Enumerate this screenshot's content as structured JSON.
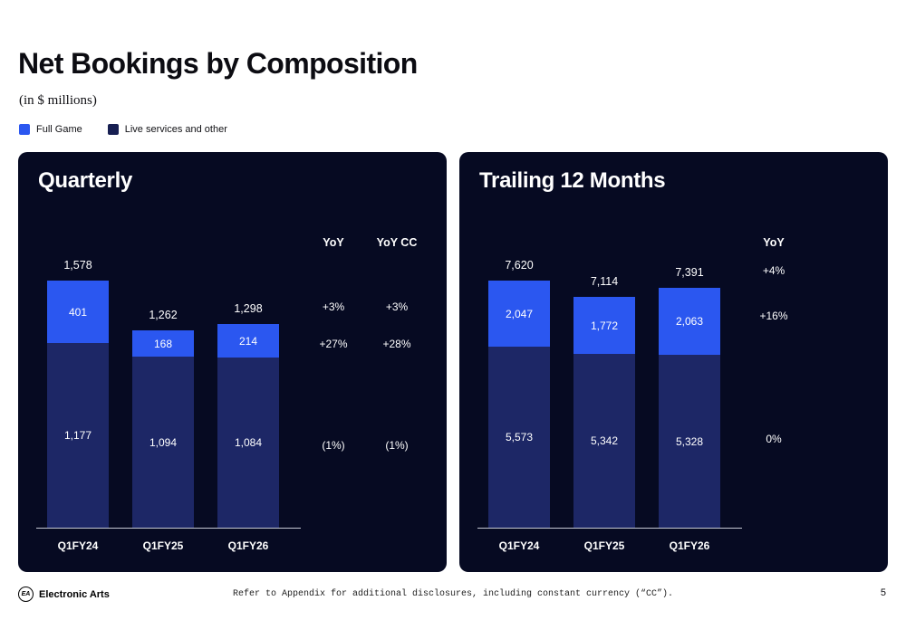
{
  "page": {
    "title": "Net Bookings by Composition",
    "subtitle": "(in $ millions)",
    "brand": "Electronic Arts",
    "logo_text": "EA",
    "footnote": "Refer to Appendix for additional disclosures, including constant currency (“CC”).",
    "page_number": "5"
  },
  "legend": [
    {
      "label": "Full Game",
      "color": "#2b57f0"
    },
    {
      "label": "Live services and other",
      "color": "#171f52"
    }
  ],
  "colors": {
    "panel_bg": "#060a22",
    "full_game": "#2b57f0",
    "live_services": "#1d2766",
    "text_light": "#ffffff"
  },
  "chart_data": [
    {
      "type": "bar",
      "title": "Quarterly",
      "categories": [
        "Q1FY24",
        "Q1FY25",
        "Q1FY26"
      ],
      "series": [
        {
          "name": "Full Game",
          "values": [
            401,
            168,
            214
          ]
        },
        {
          "name": "Live services and other",
          "values": [
            1177,
            1094,
            1084
          ]
        }
      ],
      "totals": [
        1578,
        1262,
        1298
      ],
      "total_labels": [
        "1,578",
        "1,262",
        "1,298"
      ],
      "segment_labels": {
        "full_game": [
          "401",
          "168",
          "214"
        ],
        "live_services": [
          "1,177",
          "1,094",
          "1,084"
        ]
      },
      "yoy_columns": [
        {
          "header": "YoY",
          "rows": [
            "+3%",
            "+27%",
            "(1%)"
          ]
        },
        {
          "header": "YoY CC",
          "rows": [
            "+3%",
            "+28%",
            "(1%)"
          ]
        }
      ],
      "ylim": [
        0,
        1578
      ],
      "grid": false,
      "stacking": "Full Game on top, Live services and other on bottom"
    },
    {
      "type": "bar",
      "title": "Trailing 12 Months",
      "categories": [
        "Q1FY24",
        "Q1FY25",
        "Q1FY26"
      ],
      "series": [
        {
          "name": "Full Game",
          "values": [
            2047,
            1772,
            2063
          ]
        },
        {
          "name": "Live services and other",
          "values": [
            5573,
            5342,
            5328
          ]
        }
      ],
      "totals": [
        7620,
        7114,
        7391
      ],
      "total_labels": [
        "7,620",
        "7,114",
        "7,391"
      ],
      "segment_labels": {
        "full_game": [
          "2,047",
          "1,772",
          "2,063"
        ],
        "live_services": [
          "5,573",
          "5,342",
          "5,328"
        ]
      },
      "yoy_columns": [
        {
          "header": "YoY",
          "rows": [
            "+4%",
            "+16%",
            "0%"
          ]
        }
      ],
      "ylim": [
        0,
        7620
      ],
      "grid": false,
      "stacking": "Full Game on top, Live services and other on bottom"
    }
  ]
}
